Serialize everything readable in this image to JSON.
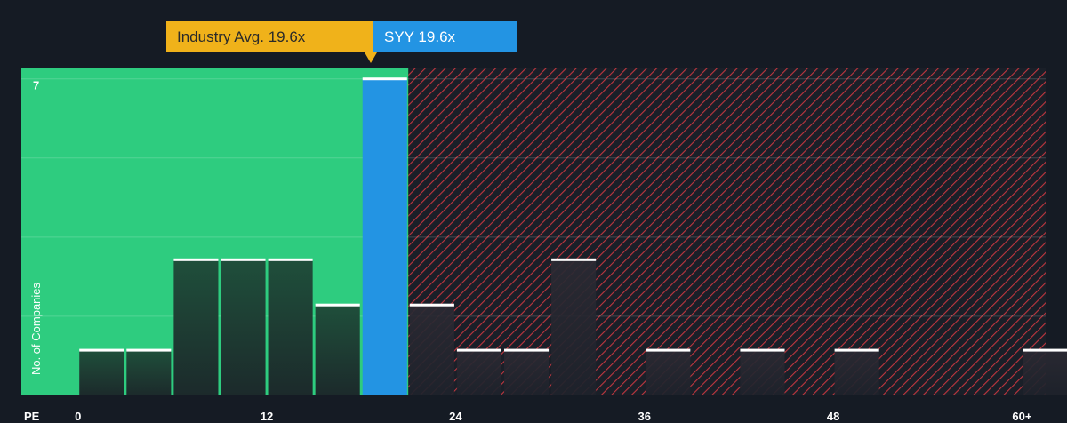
{
  "chart_data": {
    "type": "bar",
    "title": "",
    "xlabel": "PE",
    "ylabel": "No. of Companies",
    "xlim": [
      -3.6,
      61.5
    ],
    "ylim": [
      0,
      7.25
    ],
    "x_ticks": [
      {
        "value": 0,
        "label": "0"
      },
      {
        "value": 12,
        "label": "12"
      },
      {
        "value": 24,
        "label": "24"
      },
      {
        "value": 36,
        "label": "36"
      },
      {
        "value": 48,
        "label": "48"
      },
      {
        "value": 60,
        "label": "60+"
      }
    ],
    "y_ticks": [
      {
        "value": 7,
        "label": "7"
      }
    ],
    "gridlines_y": [
      1.75,
      3.5,
      5.25,
      7
    ],
    "bin_width": 3,
    "bins": [
      {
        "start": 0,
        "count": 1
      },
      {
        "start": 3,
        "count": 1
      },
      {
        "start": 6,
        "count": 3
      },
      {
        "start": 9,
        "count": 3
      },
      {
        "start": 12,
        "count": 3
      },
      {
        "start": 15,
        "count": 2
      },
      {
        "start": 18,
        "count": 7
      },
      {
        "start": 21,
        "count": 2
      },
      {
        "start": 24,
        "count": 1
      },
      {
        "start": 27,
        "count": 1
      },
      {
        "start": 30,
        "count": 3
      },
      {
        "start": 36,
        "count": 1
      },
      {
        "start": 42,
        "count": 1
      },
      {
        "start": 48,
        "count": 1
      },
      {
        "start": 60,
        "count": 1
      }
    ],
    "highlight_bin_start": 18,
    "industry_avg": 19.6,
    "company_value": 19.6
  },
  "callouts": {
    "industry": "Industry Avg. 19.6x",
    "company": "SYY 19.6x"
  },
  "colors": {
    "background": "#151b24",
    "undervalued_zone": "#2ecc7f",
    "overvalued_hatch": "#c0363f",
    "company_bar": "#2394e3",
    "industry_label": "#f0b21a"
  }
}
